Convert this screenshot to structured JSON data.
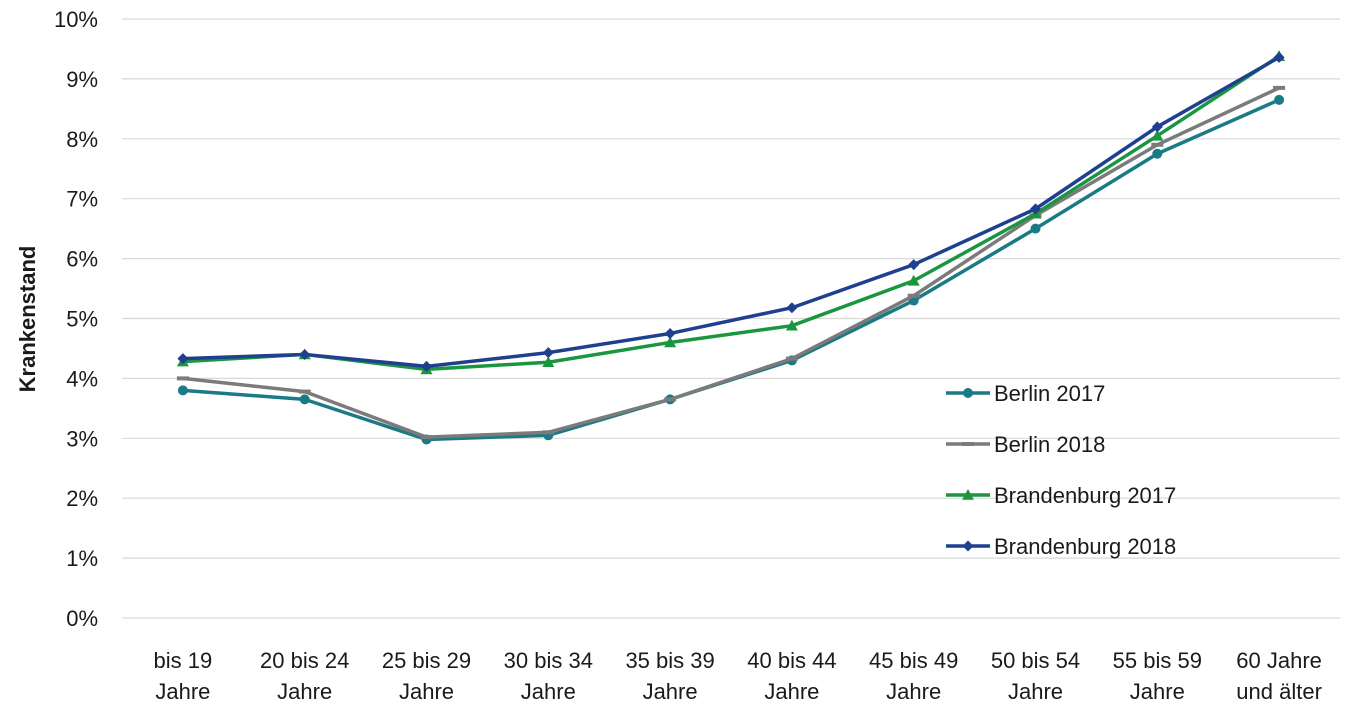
{
  "chart_data": {
    "type": "line",
    "title": "",
    "xlabel": "",
    "ylabel": "Krankenstand",
    "ylim": [
      0,
      10
    ],
    "y_ticks": [
      0,
      1,
      2,
      3,
      4,
      5,
      6,
      7,
      8,
      9,
      10
    ],
    "y_tick_labels": [
      "0%",
      "1%",
      "2%",
      "3%",
      "4%",
      "5%",
      "6%",
      "7%",
      "8%",
      "9%",
      "10%"
    ],
    "y_unit": "%",
    "grid": true,
    "legend_position": "right-center",
    "categories": [
      [
        "bis 19",
        "Jahre"
      ],
      [
        "20 bis 24",
        "Jahre"
      ],
      [
        "25 bis 29",
        "Jahre"
      ],
      [
        "30 bis 34",
        "Jahre"
      ],
      [
        "35 bis 39",
        "Jahre"
      ],
      [
        "40 bis 44",
        "Jahre"
      ],
      [
        "45 bis 49",
        "Jahre"
      ],
      [
        "50 bis 54",
        "Jahre"
      ],
      [
        "55 bis 59",
        "Jahre"
      ],
      [
        "60 Jahre",
        "und älter"
      ]
    ],
    "series": [
      {
        "name": "Berlin 2017",
        "color": "#1a7a86",
        "marker": "circle",
        "values": [
          3.8,
          3.65,
          2.98,
          3.05,
          3.65,
          4.3,
          5.3,
          6.5,
          7.75,
          8.65
        ]
      },
      {
        "name": "Berlin 2018",
        "color": "#7b7b7b",
        "marker": "dash",
        "values": [
          4.0,
          3.78,
          3.02,
          3.1,
          3.65,
          4.33,
          5.38,
          6.72,
          7.9,
          8.85
        ]
      },
      {
        "name": "Brandenburg 2017",
        "color": "#1a9641",
        "marker": "triangle",
        "values": [
          4.28,
          4.4,
          4.15,
          4.27,
          4.6,
          4.88,
          5.63,
          6.75,
          8.05,
          9.38
        ]
      },
      {
        "name": "Brandenburg 2018",
        "color": "#1f3f8f",
        "marker": "diamond",
        "values": [
          4.33,
          4.4,
          4.2,
          4.43,
          4.75,
          5.18,
          5.9,
          6.83,
          8.2,
          9.36
        ]
      }
    ]
  }
}
